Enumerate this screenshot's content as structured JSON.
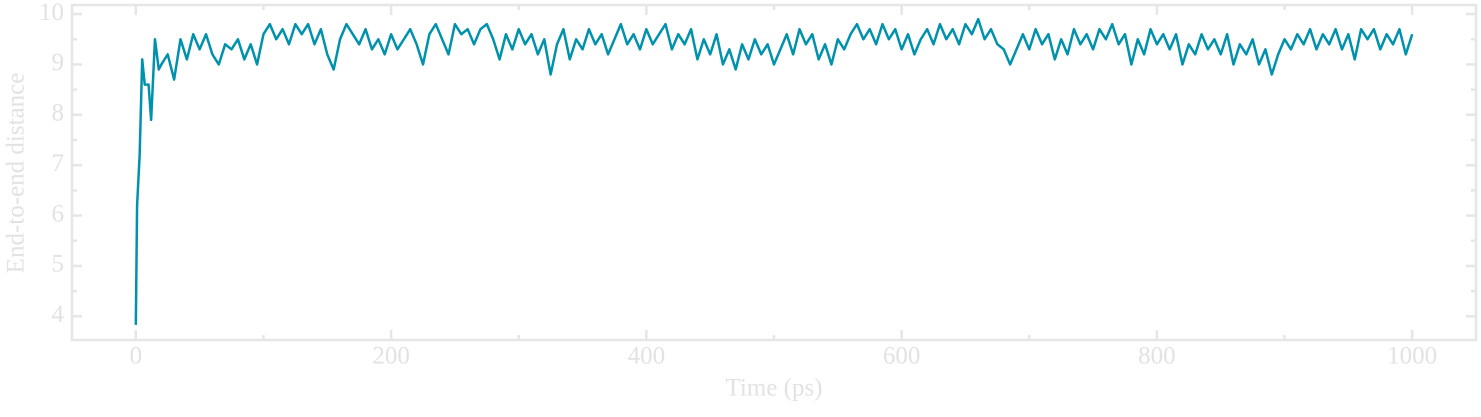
{
  "chart_data": {
    "type": "line",
    "xlabel": "Time (ps)",
    "ylabel": "End-to-end distance",
    "color": "#0091ad",
    "xlim": [
      -50,
      1050
    ],
    "ylim": [
      3.53,
      10.18
    ],
    "xticks": [
      0,
      200,
      400,
      600,
      800,
      1000
    ],
    "yticks": [
      4,
      5,
      6,
      7,
      8,
      9,
      10
    ],
    "xminorticks": [
      100,
      300,
      500,
      700,
      900
    ],
    "yminorticks": [
      4.5,
      5.5,
      6.5,
      7.5,
      8.5,
      9.5
    ],
    "x": [
      0,
      1,
      3,
      5,
      7,
      10,
      12,
      15,
      18,
      20,
      25,
      30,
      35,
      40,
      45,
      50,
      55,
      60,
      65,
      70,
      75,
      80,
      85,
      90,
      95,
      100,
      105,
      110,
      115,
      120,
      125,
      130,
      135,
      140,
      145,
      150,
      155,
      160,
      165,
      170,
      175,
      180,
      185,
      190,
      195,
      200,
      205,
      210,
      215,
      220,
      225,
      230,
      235,
      240,
      245,
      250,
      255,
      260,
      265,
      270,
      275,
      280,
      285,
      290,
      295,
      300,
      305,
      310,
      315,
      320,
      325,
      330,
      335,
      340,
      345,
      350,
      355,
      360,
      365,
      370,
      375,
      380,
      385,
      390,
      395,
      400,
      405,
      410,
      415,
      420,
      425,
      430,
      435,
      440,
      445,
      450,
      455,
      460,
      465,
      470,
      475,
      480,
      485,
      490,
      495,
      500,
      505,
      510,
      515,
      520,
      525,
      530,
      535,
      540,
      545,
      550,
      555,
      560,
      565,
      570,
      575,
      580,
      585,
      590,
      595,
      600,
      605,
      610,
      615,
      620,
      625,
      630,
      635,
      640,
      645,
      650,
      655,
      660,
      665,
      670,
      675,
      680,
      685,
      690,
      695,
      700,
      705,
      710,
      715,
      720,
      725,
      730,
      735,
      740,
      745,
      750,
      755,
      760,
      765,
      770,
      775,
      780,
      785,
      790,
      795,
      800,
      805,
      810,
      815,
      820,
      825,
      830,
      835,
      840,
      845,
      850,
      855,
      860,
      865,
      870,
      875,
      880,
      885,
      890,
      895,
      900,
      905,
      910,
      915,
      920,
      925,
      930,
      935,
      940,
      945,
      950,
      955,
      960,
      965,
      970,
      975,
      980,
      985,
      990,
      995,
      1000
    ],
    "values": [
      3.83,
      6.2,
      7.2,
      9.1,
      8.6,
      8.6,
      7.9,
      9.5,
      8.9,
      9.0,
      9.2,
      8.7,
      9.5,
      9.1,
      9.6,
      9.3,
      9.6,
      9.2,
      9.0,
      9.4,
      9.3,
      9.5,
      9.1,
      9.4,
      9.0,
      9.6,
      9.8,
      9.5,
      9.7,
      9.4,
      9.8,
      9.6,
      9.8,
      9.4,
      9.7,
      9.2,
      8.9,
      9.5,
      9.8,
      9.6,
      9.4,
      9.7,
      9.3,
      9.5,
      9.2,
      9.6,
      9.3,
      9.5,
      9.7,
      9.4,
      9.0,
      9.6,
      9.8,
      9.5,
      9.2,
      9.8,
      9.6,
      9.7,
      9.4,
      9.7,
      9.8,
      9.5,
      9.1,
      9.6,
      9.3,
      9.7,
      9.4,
      9.6,
      9.2,
      9.5,
      8.8,
      9.4,
      9.7,
      9.1,
      9.5,
      9.3,
      9.7,
      9.4,
      9.6,
      9.2,
      9.5,
      9.8,
      9.4,
      9.6,
      9.3,
      9.7,
      9.4,
      9.6,
      9.8,
      9.3,
      9.6,
      9.4,
      9.7,
      9.1,
      9.5,
      9.2,
      9.6,
      9.0,
      9.3,
      8.9,
      9.4,
      9.1,
      9.5,
      9.2,
      9.4,
      9.0,
      9.3,
      9.6,
      9.2,
      9.7,
      9.4,
      9.6,
      9.1,
      9.4,
      9.0,
      9.5,
      9.3,
      9.6,
      9.8,
      9.5,
      9.7,
      9.4,
      9.8,
      9.5,
      9.7,
      9.3,
      9.6,
      9.2,
      9.5,
      9.7,
      9.4,
      9.8,
      9.5,
      9.7,
      9.4,
      9.8,
      9.6,
      9.9,
      9.5,
      9.7,
      9.4,
      9.3,
      9.0,
      9.3,
      9.6,
      9.3,
      9.7,
      9.4,
      9.6,
      9.1,
      9.5,
      9.2,
      9.7,
      9.4,
      9.6,
      9.3,
      9.7,
      9.5,
      9.8,
      9.4,
      9.6,
      9.0,
      9.5,
      9.2,
      9.7,
      9.4,
      9.6,
      9.3,
      9.6,
      9.0,
      9.4,
      9.2,
      9.6,
      9.3,
      9.5,
      9.2,
      9.6,
      9.0,
      9.4,
      9.2,
      9.5,
      9.0,
      9.3,
      8.8,
      9.2,
      9.5,
      9.3,
      9.6,
      9.4,
      9.7,
      9.3,
      9.6,
      9.4,
      9.7,
      9.3,
      9.6,
      9.1,
      9.7,
      9.5,
      9.7,
      9.3,
      9.6,
      9.4,
      9.7,
      9.2,
      9.6
    ]
  }
}
